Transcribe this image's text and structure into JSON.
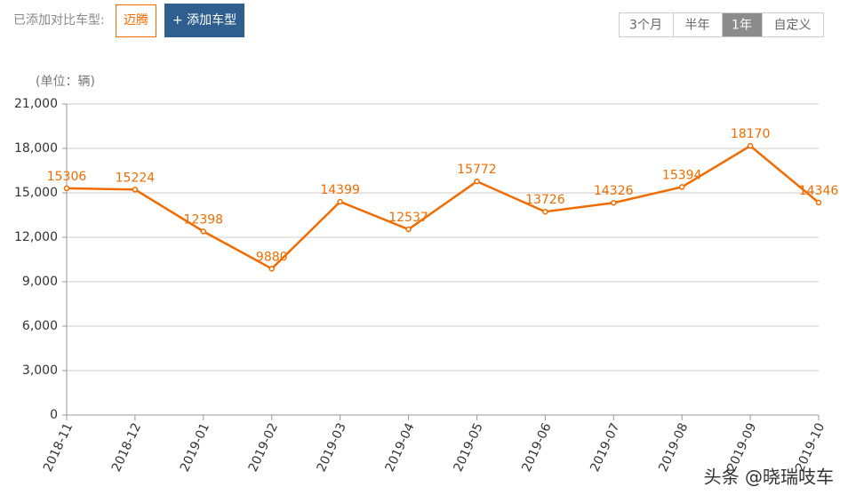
{
  "toolbar": {
    "label": "已添加对比车型:",
    "selected_model": "迈腾",
    "add_button": "+ 添加车型",
    "ranges": [
      "3个月",
      "半年",
      "1年",
      "自定义"
    ],
    "active_range": 2
  },
  "chart_data": {
    "type": "line",
    "y_label": "(单位：辆)",
    "categories": [
      "2018-11",
      "2018-12",
      "2019-01",
      "2019-02",
      "2019-03",
      "2019-04",
      "2019-05",
      "2019-06",
      "2019-07",
      "2019-08",
      "2019-09",
      "2019-10"
    ],
    "series": [
      {
        "name": "迈腾",
        "color": "#f06c00",
        "values": [
          15306,
          15224,
          12398,
          9880,
          14399,
          12537,
          15772,
          13726,
          14326,
          15394,
          18170,
          14346
        ]
      }
    ],
    "ylim": [
      0,
      21000
    ],
    "yticks": [
      0,
      {
        "value": 3000,
        "label": "3,000"
      },
      {
        "value": 6000,
        "label": "6,000"
      },
      {
        "value": 9000,
        "label": "9,000"
      },
      {
        "value": 12000,
        "label": "12,000"
      },
      {
        "value": 15000,
        "label": "15,000"
      },
      {
        "value": 18000,
        "label": "18,000"
      },
      {
        "value": 21000,
        "label": "21,000"
      }
    ],
    "grid": true
  },
  "watermark": "头条 @晓瑞吱车"
}
